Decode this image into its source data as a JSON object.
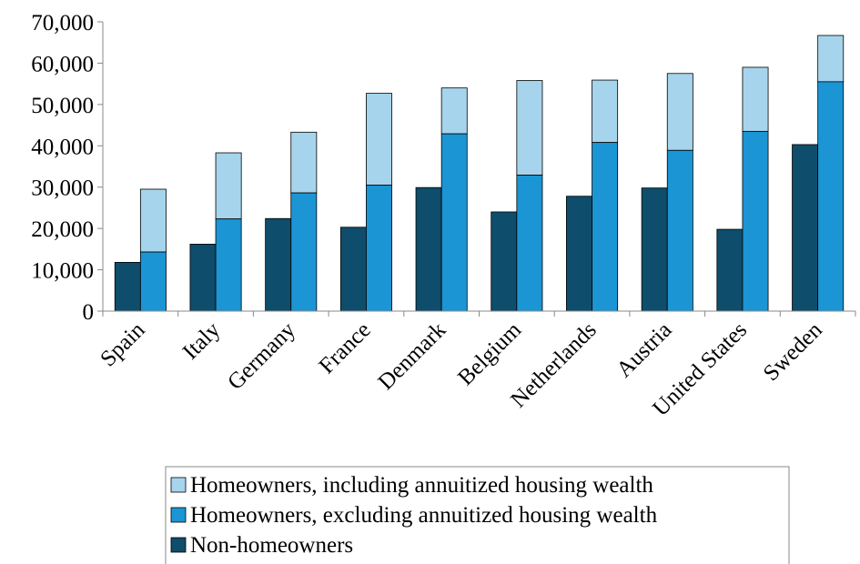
{
  "chart_data": {
    "type": "bar",
    "title": "",
    "xlabel": "",
    "ylabel": "",
    "ylim": [
      0,
      70000
    ],
    "yticks": [
      "0",
      "10,000",
      "20,000",
      "30,000",
      "40,000",
      "50,000",
      "60,000",
      "70,000"
    ],
    "grid": false,
    "legend_position": "bottom",
    "categories": [
      "Spain",
      "Italy",
      "Germany",
      "France",
      "Denmark",
      "Belgium",
      "Netherlands",
      "Austria",
      "United States",
      "Sweden"
    ],
    "series": [
      {
        "name": "Homeowners, including annuitized housing wealth",
        "color": "#a6d4ec",
        "values": [
          29500,
          38300,
          43300,
          52700,
          54000,
          55800,
          55900,
          57500,
          59000,
          66700
        ]
      },
      {
        "name": "Homeowners, excluding annuitized housing wealth",
        "color": "#1b95d4",
        "values": [
          14300,
          22300,
          28600,
          30500,
          42900,
          32900,
          40800,
          38900,
          43500,
          55500
        ]
      },
      {
        "name": "Non-homeowners",
        "color": "#0e4d6b",
        "values": [
          11800,
          16200,
          22400,
          20300,
          29900,
          24000,
          27800,
          29800,
          19800,
          40300
        ]
      }
    ]
  }
}
